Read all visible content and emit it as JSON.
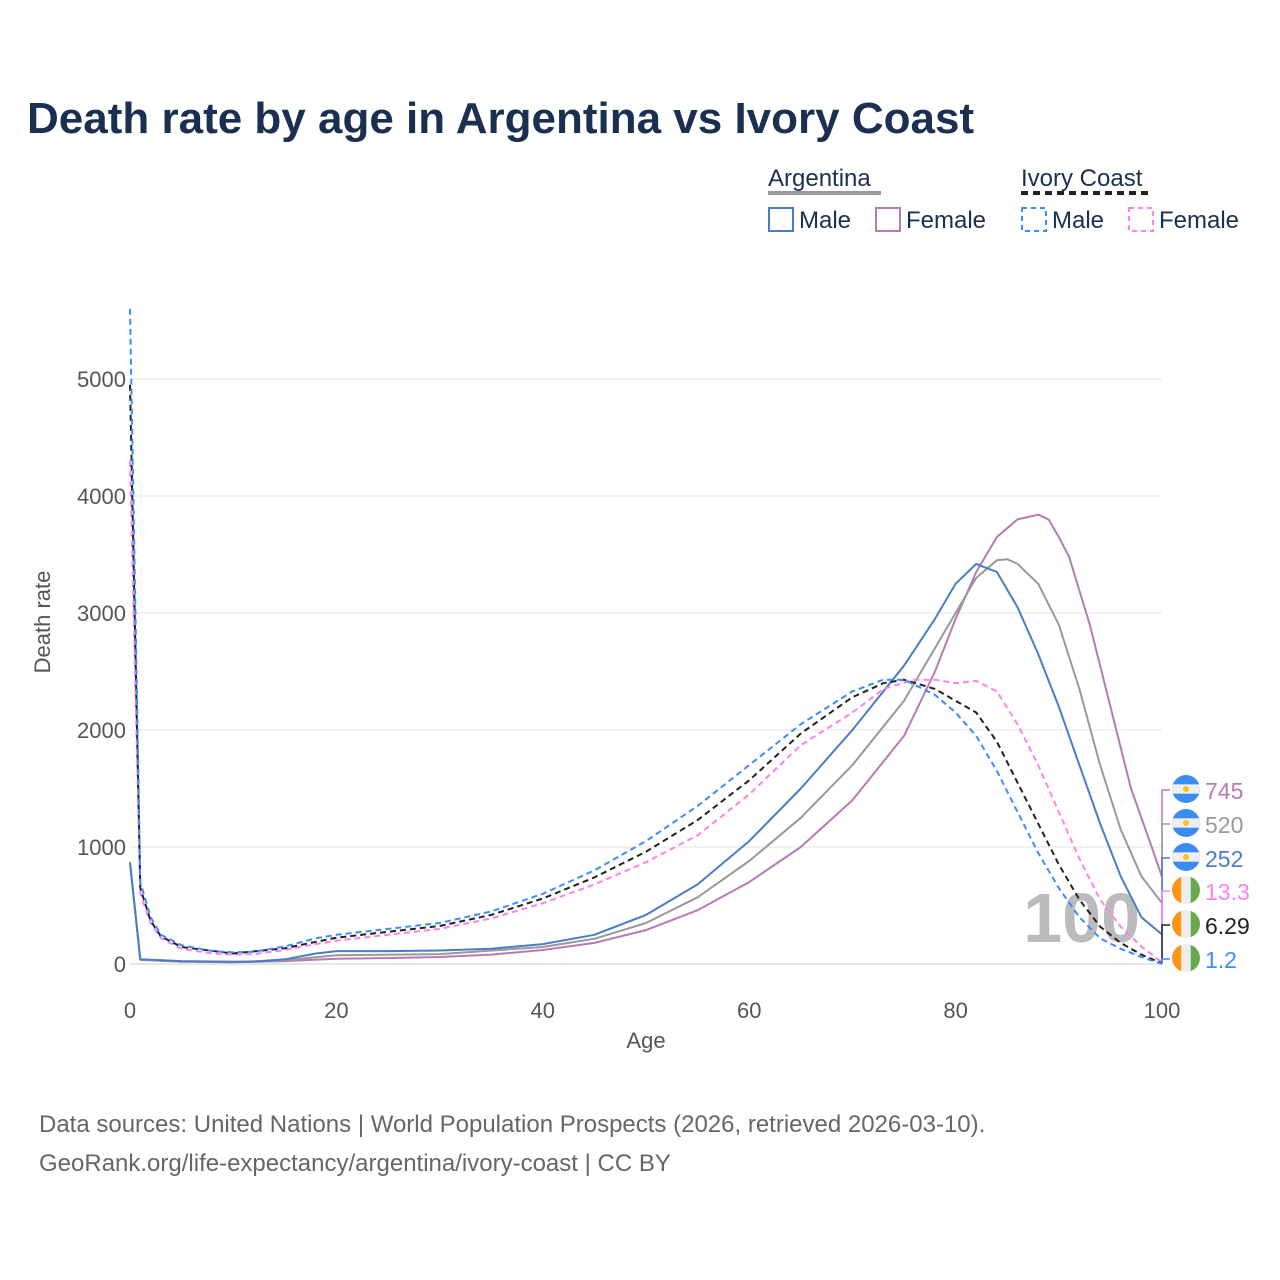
{
  "chart_data": {
    "type": "line",
    "title": "Death rate by age in Argentina vs Ivory Coast",
    "xlabel": "Age",
    "ylabel": "Death rate",
    "xlim": [
      0,
      100
    ],
    "ylim": [
      0,
      5600
    ],
    "xticks": [
      "0",
      "20",
      "40",
      "60",
      "80",
      "100"
    ],
    "yticks": [
      "0",
      "1000",
      "2000",
      "3000",
      "4000",
      "5000"
    ],
    "grid": true,
    "hover_age": "100",
    "legend": {
      "placement": "top-right",
      "groups": [
        {
          "name": "Argentina",
          "items": [
            "Male",
            "Female"
          ]
        },
        {
          "name": "Ivory Coast",
          "items": [
            "Male",
            "Female"
          ]
        }
      ]
    },
    "series": [
      {
        "name": "Argentina Female",
        "color": "#b77ab5",
        "dashed": false,
        "end_label": "745",
        "flag": "argentina",
        "points": [
          [
            0,
            860
          ],
          [
            1,
            35
          ],
          [
            5,
            20
          ],
          [
            10,
            15
          ],
          [
            15,
            25
          ],
          [
            20,
            45
          ],
          [
            25,
            50
          ],
          [
            30,
            60
          ],
          [
            35,
            80
          ],
          [
            40,
            120
          ],
          [
            45,
            180
          ],
          [
            50,
            290
          ],
          [
            55,
            460
          ],
          [
            60,
            700
          ],
          [
            65,
            1000
          ],
          [
            70,
            1400
          ],
          [
            75,
            1950
          ],
          [
            78,
            2500
          ],
          [
            80,
            2950
          ],
          [
            82,
            3350
          ],
          [
            84,
            3650
          ],
          [
            86,
            3800
          ],
          [
            88,
            3840
          ],
          [
            89,
            3800
          ],
          [
            90,
            3650
          ],
          [
            91,
            3480
          ],
          [
            93,
            2900
          ],
          [
            95,
            2200
          ],
          [
            97,
            1500
          ],
          [
            99,
            1000
          ],
          [
            100,
            745
          ]
        ]
      },
      {
        "name": "Argentina Total",
        "color": "#999999",
        "dashed": false,
        "end_label": "520",
        "flag": "argentina",
        "points": [
          [
            0,
            865
          ],
          [
            1,
            38
          ],
          [
            5,
            22
          ],
          [
            10,
            18
          ],
          [
            15,
            32
          ],
          [
            20,
            75
          ],
          [
            30,
            85
          ],
          [
            40,
            145
          ],
          [
            45,
            215
          ],
          [
            50,
            350
          ],
          [
            55,
            570
          ],
          [
            60,
            880
          ],
          [
            65,
            1250
          ],
          [
            70,
            1700
          ],
          [
            75,
            2250
          ],
          [
            80,
            3000
          ],
          [
            82,
            3300
          ],
          [
            84,
            3450
          ],
          [
            85,
            3460
          ],
          [
            86,
            3420
          ],
          [
            88,
            3250
          ],
          [
            90,
            2900
          ],
          [
            92,
            2350
          ],
          [
            94,
            1700
          ],
          [
            96,
            1150
          ],
          [
            98,
            750
          ],
          [
            100,
            520
          ]
        ]
      },
      {
        "name": "Argentina Male",
        "color": "#4a7cc9",
        "dashed": false,
        "end_label": "252",
        "flag": "argentina",
        "points": [
          [
            0,
            870
          ],
          [
            1,
            40
          ],
          [
            5,
            25
          ],
          [
            10,
            20
          ],
          [
            12,
            20
          ],
          [
            15,
            40
          ],
          [
            18,
            90
          ],
          [
            20,
            110
          ],
          [
            25,
            110
          ],
          [
            30,
            115
          ],
          [
            35,
            130
          ],
          [
            40,
            170
          ],
          [
            45,
            250
          ],
          [
            50,
            420
          ],
          [
            55,
            680
          ],
          [
            60,
            1050
          ],
          [
            65,
            1500
          ],
          [
            70,
            2000
          ],
          [
            75,
            2550
          ],
          [
            78,
            2950
          ],
          [
            80,
            3250
          ],
          [
            82,
            3420
          ],
          [
            84,
            3350
          ],
          [
            86,
            3050
          ],
          [
            88,
            2650
          ],
          [
            90,
            2200
          ],
          [
            92,
            1700
          ],
          [
            94,
            1200
          ],
          [
            96,
            750
          ],
          [
            98,
            400
          ],
          [
            100,
            252
          ]
        ]
      },
      {
        "name": "Ivory Coast Female",
        "color": "#ff80ee",
        "dashed": true,
        "end_label": "13.3",
        "flag": "ivory-coast",
        "points": [
          [
            0,
            4300
          ],
          [
            1,
            600
          ],
          [
            2,
            350
          ],
          [
            3,
            220
          ],
          [
            5,
            130
          ],
          [
            8,
            90
          ],
          [
            10,
            80
          ],
          [
            12,
            85
          ],
          [
            15,
            120
          ],
          [
            18,
            170
          ],
          [
            20,
            200
          ],
          [
            25,
            250
          ],
          [
            30,
            300
          ],
          [
            35,
            390
          ],
          [
            40,
            520
          ],
          [
            45,
            680
          ],
          [
            50,
            870
          ],
          [
            55,
            1100
          ],
          [
            60,
            1450
          ],
          [
            65,
            1870
          ],
          [
            70,
            2150
          ],
          [
            73,
            2350
          ],
          [
            76,
            2430
          ],
          [
            78,
            2430
          ],
          [
            80,
            2400
          ],
          [
            82,
            2420
          ],
          [
            84,
            2330
          ],
          [
            86,
            2050
          ],
          [
            88,
            1700
          ],
          [
            90,
            1300
          ],
          [
            92,
            900
          ],
          [
            94,
            550
          ],
          [
            96,
            320
          ],
          [
            98,
            150
          ],
          [
            100,
            13.3
          ]
        ]
      },
      {
        "name": "Ivory Coast Total",
        "color": "#222222",
        "dashed": true,
        "end_label": "6.29",
        "flag": "ivory-coast",
        "points": [
          [
            0,
            4950
          ],
          [
            1,
            650
          ],
          [
            2,
            370
          ],
          [
            3,
            235
          ],
          [
            5,
            145
          ],
          [
            10,
            90
          ],
          [
            15,
            135
          ],
          [
            20,
            225
          ],
          [
            25,
            275
          ],
          [
            30,
            325
          ],
          [
            35,
            420
          ],
          [
            40,
            560
          ],
          [
            45,
            740
          ],
          [
            50,
            960
          ],
          [
            55,
            1230
          ],
          [
            60,
            1570
          ],
          [
            65,
            1970
          ],
          [
            70,
            2280
          ],
          [
            73,
            2400
          ],
          [
            75,
            2430
          ],
          [
            78,
            2350
          ],
          [
            80,
            2250
          ],
          [
            82,
            2150
          ],
          [
            84,
            1900
          ],
          [
            86,
            1550
          ],
          [
            88,
            1200
          ],
          [
            90,
            850
          ],
          [
            92,
            550
          ],
          [
            94,
            320
          ],
          [
            96,
            180
          ],
          [
            98,
            80
          ],
          [
            100,
            6.29
          ]
        ]
      },
      {
        "name": "Ivory Coast Male",
        "color": "#3a8cff",
        "dashed": true,
        "end_label": "1.2",
        "flag": "ivory-coast",
        "points": [
          [
            0,
            5600
          ],
          [
            1,
            700
          ],
          [
            2,
            400
          ],
          [
            3,
            250
          ],
          [
            5,
            160
          ],
          [
            8,
            110
          ],
          [
            10,
            100
          ],
          [
            12,
            105
          ],
          [
            15,
            150
          ],
          [
            18,
            220
          ],
          [
            20,
            250
          ],
          [
            25,
            300
          ],
          [
            30,
            350
          ],
          [
            35,
            450
          ],
          [
            40,
            600
          ],
          [
            45,
            800
          ],
          [
            50,
            1050
          ],
          [
            55,
            1350
          ],
          [
            60,
            1700
          ],
          [
            65,
            2050
          ],
          [
            70,
            2330
          ],
          [
            73,
            2430
          ],
          [
            75,
            2430
          ],
          [
            78,
            2300
          ],
          [
            80,
            2150
          ],
          [
            82,
            1950
          ],
          [
            84,
            1650
          ],
          [
            86,
            1300
          ],
          [
            88,
            950
          ],
          [
            90,
            650
          ],
          [
            92,
            400
          ],
          [
            94,
            220
          ],
          [
            96,
            130
          ],
          [
            98,
            60
          ],
          [
            100,
            1.2
          ]
        ]
      }
    ]
  },
  "footer": {
    "line1": "Data sources: United Nations | World Population Prospects (2026, retrieved 2026-03-10).",
    "line2": "GeoRank.org/life-expectancy/argentina/ivory-coast | CC BY"
  }
}
